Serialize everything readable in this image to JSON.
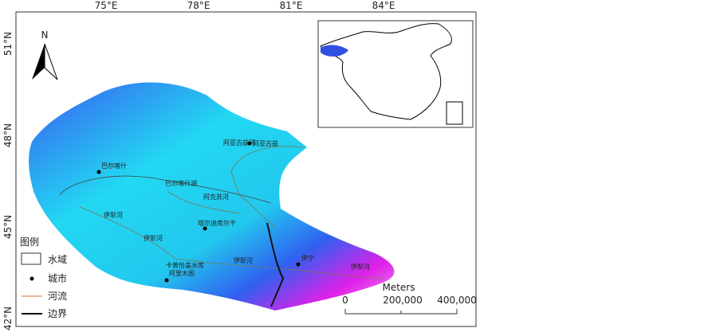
{
  "map": {
    "lon_labels": [
      "75°E",
      "78°E",
      "81°E",
      "84°E"
    ],
    "lat_labels": [
      "51°N",
      "48°N",
      "45°N",
      "42°N"
    ],
    "north": "N",
    "legend": {
      "title": "图例",
      "items": [
        "水域",
        "城市",
        "河流",
        "边界"
      ]
    },
    "scale": {
      "unit": "Meters",
      "labels": [
        "0",
        "200,000",
        "400,000"
      ]
    },
    "cities": [
      "巴尔喀什",
      "阿亚古兹",
      "塔尔迪库尔干",
      "伊宁",
      "阿里木图"
    ],
    "water_labels": [
      "巴尔喀什湖",
      "卡普恰盖水库"
    ],
    "rivers": [
      "阿亚古兹河",
      "阿克苏河",
      "伊犁河",
      "伊犁河",
      "伊犁河",
      "伊犁河"
    ]
  }
}
